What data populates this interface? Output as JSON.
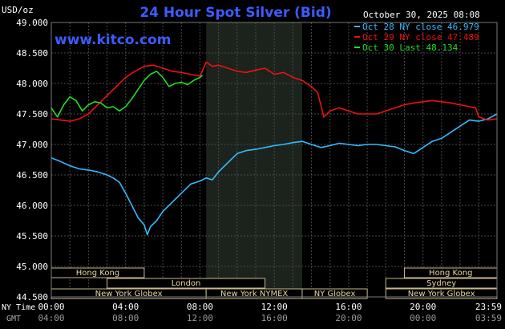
{
  "chart_data": {
    "type": "line",
    "title": "24 Hour Spot Silver (Bid)",
    "timestamp": "October 30, 2025 08:08",
    "website": "www.kitco.com",
    "y_unit": "USD/oz",
    "ylim": [
      44.5,
      49.0
    ],
    "y_ticks": [
      "49.000",
      "48.500",
      "48.000",
      "47.500",
      "47.000",
      "46.500",
      "46.000",
      "45.500",
      "45.000",
      "44.500"
    ],
    "x_row_label": "NY Time",
    "x_row2_label": "GMT",
    "x_ticks_ny": [
      "00:00",
      "04:00",
      "08:00",
      "12:00",
      "16:00",
      "20:00",
      "23:59"
    ],
    "x_ticks_gmt": [
      "04:00",
      "08:00",
      "12:00",
      "16:00",
      "20:00",
      "00:00",
      "03:59"
    ],
    "grid": true,
    "legend_position": "top-right",
    "highlight_band": [
      "08:20",
      "13:30"
    ],
    "sessions": [
      {
        "label": "Hong Kong",
        "start": "00:00",
        "end": "05:00"
      },
      {
        "label": "Hong Kong",
        "start": "19:00",
        "end": "23:59"
      },
      {
        "label": "London",
        "start": "03:00",
        "end": "11:30"
      },
      {
        "label": "Sydney",
        "start": "18:00",
        "end": "23:59"
      },
      {
        "label": "New York Globex",
        "start": "00:00",
        "end": "08:20"
      },
      {
        "label": "New York NYMEX",
        "start": "08:20",
        "end": "13:30"
      },
      {
        "label": "NY Globex",
        "start": "13:30",
        "end": "17:00"
      },
      {
        "label": "New York Globex",
        "start": "18:00",
        "end": "23:59"
      }
    ],
    "series": [
      {
        "name": "Oct 28 NY close 46.979",
        "color": "#33bbff",
        "x": [
          "00:00",
          "00:30",
          "01:00",
          "01:30",
          "02:00",
          "02:30",
          "03:00",
          "03:20",
          "03:40",
          "04:00",
          "04:20",
          "04:40",
          "05:00",
          "05:10",
          "05:20",
          "05:40",
          "06:00",
          "06:30",
          "07:00",
          "07:30",
          "08:00",
          "08:20",
          "08:40",
          "09:00",
          "09:30",
          "10:00",
          "10:30",
          "11:00",
          "11:30",
          "12:00",
          "12:30",
          "13:00",
          "13:30",
          "14:00",
          "14:30",
          "15:00",
          "15:30",
          "16:00",
          "16:30",
          "17:00",
          "17:30",
          "18:00",
          "18:30",
          "19:00",
          "19:30",
          "20:00",
          "20:30",
          "21:00",
          "21:30",
          "22:00",
          "22:30",
          "23:00",
          "23:30",
          "23:59"
        ],
        "values": [
          46.78,
          46.72,
          46.65,
          46.6,
          46.58,
          46.55,
          46.5,
          46.45,
          46.38,
          46.2,
          46.0,
          45.8,
          45.68,
          45.52,
          45.65,
          45.75,
          45.9,
          46.05,
          46.2,
          46.35,
          46.4,
          46.45,
          46.42,
          46.55,
          46.7,
          46.85,
          46.9,
          46.92,
          46.95,
          46.98,
          47.0,
          47.03,
          47.05,
          47.0,
          46.95,
          46.98,
          47.02,
          47.0,
          46.98,
          47.0,
          47.0,
          46.98,
          46.96,
          46.9,
          46.85,
          46.95,
          47.05,
          47.1,
          47.2,
          47.3,
          47.4,
          47.38,
          47.42,
          47.5
        ]
      },
      {
        "name": "Oct 29 NY close 47.489",
        "color": "#ee1111",
        "x": [
          "00:00",
          "00:30",
          "01:00",
          "01:30",
          "02:00",
          "02:30",
          "03:00",
          "03:30",
          "04:00",
          "04:30",
          "05:00",
          "05:30",
          "06:00",
          "06:30",
          "07:00",
          "07:30",
          "08:00",
          "08:20",
          "08:40",
          "09:00",
          "09:30",
          "10:00",
          "10:30",
          "11:00",
          "11:30",
          "12:00",
          "12:30",
          "13:00",
          "13:30",
          "14:00",
          "14:20",
          "14:40",
          "15:00",
          "15:30",
          "16:00",
          "16:30",
          "17:00",
          "17:30",
          "18:00",
          "18:30",
          "19:00",
          "19:30",
          "20:00",
          "20:30",
          "21:00",
          "21:30",
          "22:00",
          "22:30",
          "22:50",
          "23:00",
          "23:30",
          "23:59"
        ],
        "values": [
          47.42,
          47.4,
          47.38,
          47.42,
          47.5,
          47.65,
          47.8,
          47.95,
          48.1,
          48.2,
          48.28,
          48.3,
          48.25,
          48.2,
          48.18,
          48.15,
          48.12,
          48.35,
          48.28,
          48.3,
          48.25,
          48.2,
          48.18,
          48.22,
          48.25,
          48.15,
          48.18,
          48.1,
          48.05,
          47.95,
          47.85,
          47.45,
          47.55,
          47.6,
          47.55,
          47.5,
          47.5,
          47.5,
          47.55,
          47.6,
          47.65,
          47.68,
          47.7,
          47.72,
          47.7,
          47.68,
          47.65,
          47.62,
          47.6,
          47.45,
          47.4,
          47.42
        ]
      },
      {
        "name": "Oct 30 Last 48.134",
        "color": "#22dd22",
        "x": [
          "00:00",
          "00:20",
          "00:40",
          "01:00",
          "01:20",
          "01:40",
          "02:00",
          "02:20",
          "02:40",
          "03:00",
          "03:20",
          "03:40",
          "04:00",
          "04:20",
          "04:40",
          "05:00",
          "05:20",
          "05:40",
          "06:00",
          "06:20",
          "06:40",
          "07:00",
          "07:20",
          "07:40",
          "08:00",
          "08:08"
        ],
        "values": [
          47.6,
          47.45,
          47.65,
          47.78,
          47.72,
          47.55,
          47.65,
          47.7,
          47.68,
          47.6,
          47.62,
          47.55,
          47.62,
          47.75,
          47.9,
          48.05,
          48.15,
          48.2,
          48.1,
          47.95,
          48.0,
          48.02,
          47.98,
          48.05,
          48.1,
          48.134
        ]
      }
    ]
  }
}
